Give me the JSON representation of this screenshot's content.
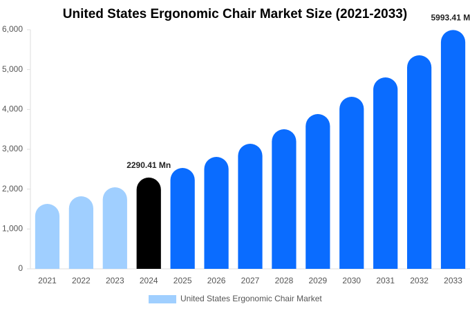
{
  "chart_data": {
    "type": "bar",
    "title": "United States Ergonomic Chair Market Size (2021-2033)",
    "categories": [
      "2021",
      "2022",
      "2023",
      "2024",
      "2025",
      "2026",
      "2027",
      "2028",
      "2029",
      "2030",
      "2031",
      "2032",
      "2033"
    ],
    "series": [
      {
        "name": "United States Ergonomic Chair Market",
        "color": "#a0cfff",
        "values": [
          1630,
          1821,
          2046,
          2290.41,
          2532,
          2809,
          3139,
          3503,
          3884,
          4318,
          4803,
          5358,
          5993.41
        ],
        "value_labels": [
          null,
          null,
          null,
          "2290.41 Mn",
          null,
          null,
          null,
          null,
          null,
          null,
          null,
          null,
          "5993.41 Mn"
        ],
        "colors": [
          "#a0cfff",
          "#a0cfff",
          "#a0cfff",
          "#000000",
          "#0a6cff",
          "#0a6cff",
          "#0a6cff",
          "#0a6cff",
          "#0a6cff",
          "#0a6cff",
          "#0a6cff",
          "#0a6cff",
          "#0a6cff"
        ]
      }
    ],
    "ylim": [
      0,
      6000
    ],
    "yticks": [
      0,
      {
        "value": 1000,
        "label": "1,000"
      },
      {
        "value": 2000,
        "label": "2,000"
      },
      {
        "value": 3000,
        "label": "3,000"
      },
      {
        "value": 4000,
        "label": "4,000"
      },
      {
        "value": 5000,
        "label": "5,000"
      },
      {
        "value": 6000,
        "label": "6,000"
      }
    ],
    "grid": false
  }
}
